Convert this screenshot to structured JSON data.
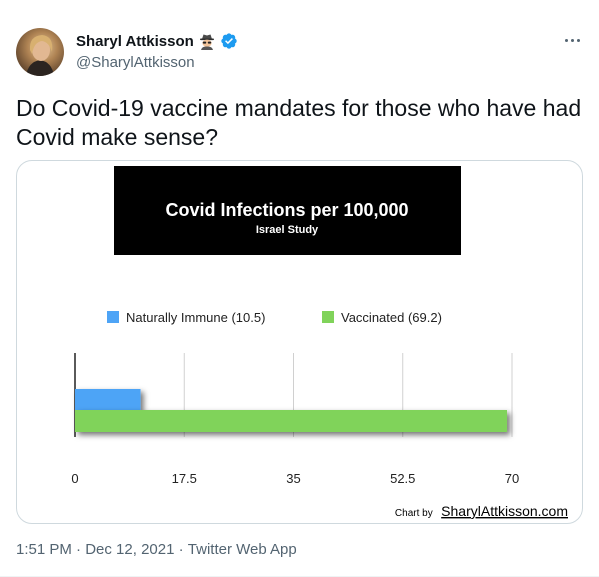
{
  "author": {
    "display_name": "Sharyl Attkisson",
    "handle": "@SharylAttkisson",
    "verified": true,
    "badge_icon": "spy-icon"
  },
  "tweet": {
    "text": "Do Covid-19 vaccine mandates for those who have had\nCovid make sense?",
    "time": "1:51 PM",
    "date": "Dec 12, 2021",
    "client": "Twitter Web App",
    "separator": " · "
  },
  "colors": {
    "verified_blue": "#1d9bf0",
    "text_primary": "#0f1419",
    "text_secondary": "#536471",
    "naturally_immune": "#4ea4f6",
    "vaccinated": "#80d35a",
    "title_box_bg": "#000000"
  },
  "chart_data": {
    "type": "bar",
    "orientation": "horizontal",
    "title": "Covid Infections per 100,000",
    "subtitle": "Israel Study",
    "series": [
      {
        "name": "Naturally Immune (10.5)",
        "value": 10.5,
        "color": "#4ea4f6"
      },
      {
        "name": "Vaccinated (69.2)",
        "value": 69.2,
        "color": "#80d35a"
      }
    ],
    "xlim": [
      0,
      70
    ],
    "x_ticks": [
      "0",
      "17.5",
      "35",
      "52.5",
      "70"
    ],
    "grid": "vertical",
    "legend_position": "top",
    "credit_prefix": "Chart by",
    "credit_site": "SharylAttkisson.com"
  }
}
